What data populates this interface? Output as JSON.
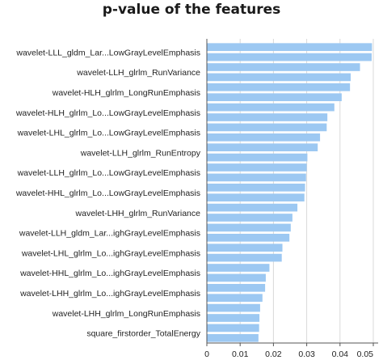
{
  "chart_data": {
    "type": "bar",
    "orientation": "horizontal",
    "title": "p-value of the features",
    "xlabel": "",
    "ylabel": "",
    "xlim": [
      0,
      0.05
    ],
    "x_ticks": [
      "0",
      "0.01",
      "0.02",
      "0.03",
      "0.04",
      "0.05"
    ],
    "grid": "vertical",
    "bar_color": "#9cc8f2",
    "categories": [
      "wavelet-LLL_gldm_Lar...LowGrayLevelEmphasis",
      "",
      "wavelet-LLH_glrlm_RunVariance",
      "",
      "wavelet-HLH_glrlm_LongRunEmphasis",
      "",
      "wavelet-HLH_glrlm_Lo...LowGrayLevelEmphasis",
      "",
      "wavelet-LHL_glrlm_Lo...LowGrayLevelEmphasis",
      "",
      "wavelet-LLH_glrlm_RunEntropy",
      "",
      "wavelet-LLH_glrlm_Lo...LowGrayLevelEmphasis",
      "",
      "wavelet-HHL_glrlm_Lo...LowGrayLevelEmphasis",
      "",
      "wavelet-LHH_glrlm_RunVariance",
      "",
      "wavelet-LLH_gldm_Lar...ighGrayLevelEmphasis",
      "",
      "wavelet-LHL_glrlm_Lo...ighGrayLevelEmphasis",
      "",
      "wavelet-HHL_glrlm_Lo...ighGrayLevelEmphasis",
      "",
      "wavelet-LHH_glrlm_Lo...ighGrayLevelEmphasis",
      "",
      "wavelet-LHH_glrlm_LongRunEmphasis",
      "",
      "square_firstorder_TotalEnergy",
      ""
    ],
    "values": [
      0.0496,
      0.0495,
      0.046,
      0.0432,
      0.043,
      0.0405,
      0.0383,
      0.0362,
      0.036,
      0.034,
      0.0333,
      0.0302,
      0.03,
      0.0298,
      0.0295,
      0.0293,
      0.0272,
      0.0257,
      0.0252,
      0.0248,
      0.0227,
      0.0225,
      0.0188,
      0.0177,
      0.0175,
      0.0167,
      0.016,
      0.0158,
      0.0157,
      0.0155
    ]
  }
}
